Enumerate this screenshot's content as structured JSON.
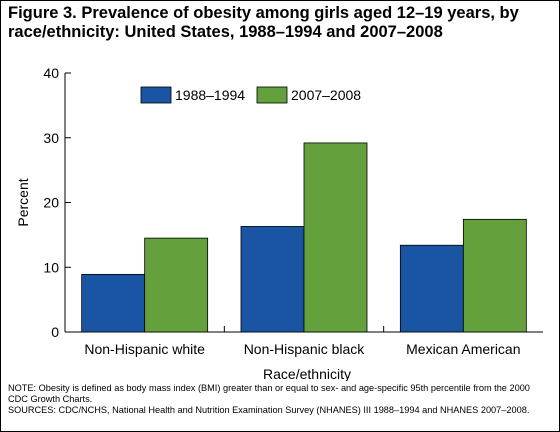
{
  "chart_data": {
    "type": "bar",
    "title": "Figure 3. Prevalence of obesity among girls aged 12–19 years, by race/ethnicity: United States, 1988–1994 and 2007–2008",
    "categories": [
      "Non-Hispanic white",
      "Non-Hispanic black",
      "Mexican American"
    ],
    "series": [
      {
        "name": "1988–1994",
        "values": [
          8.9,
          16.3,
          13.4
        ],
        "color": "#1a55a3"
      },
      {
        "name": "2007–2008",
        "values": [
          14.5,
          29.2,
          17.4
        ],
        "color": "#64a03c"
      }
    ],
    "xlabel": "Race/ethnicity",
    "ylabel": "Percent",
    "ylim": [
      0,
      40
    ],
    "yticks": [
      "0",
      "10",
      "20",
      "30",
      "40"
    ],
    "grid": false,
    "legend_position": "top"
  },
  "notes": {
    "note_line1": "NOTE: Obesity is defined as body mass index (BMI) greater than or equal to sex- and age-specific 95th percentile from the 2000",
    "note_line2": "CDC Growth Charts.",
    "sources": "SOURCES: CDC/NCHS, National Health and Nutrition Examination Survey (NHANES) III 1988–1994 and NHANES 2007–2008."
  }
}
